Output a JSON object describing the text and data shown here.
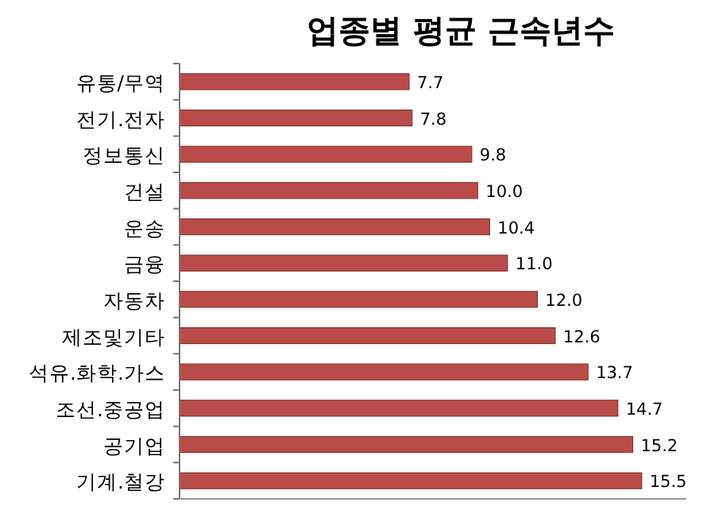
{
  "chart_data": {
    "type": "bar",
    "orientation": "horizontal",
    "title": "업종별 평균 근속년수",
    "categories": [
      "유통/무역",
      "전기.전자",
      "정보통신",
      "건설",
      "운송",
      "금융",
      "자동차",
      "제조및기타",
      "석유.화학.가스",
      "조선.중공업",
      "공기업",
      "기계.철강"
    ],
    "values": [
      7.7,
      7.8,
      9.8,
      10.0,
      10.4,
      11.0,
      12.0,
      12.6,
      13.7,
      14.7,
      15.2,
      15.5
    ],
    "color": "#b94c49",
    "xlim": [
      0,
      17
    ],
    "value_labels": [
      "7.7",
      "7.8",
      "9.8",
      "10.0",
      "10.4",
      "11.0",
      "12.0",
      "12.6",
      "13.7",
      "14.7",
      "15.2",
      "15.5"
    ]
  }
}
